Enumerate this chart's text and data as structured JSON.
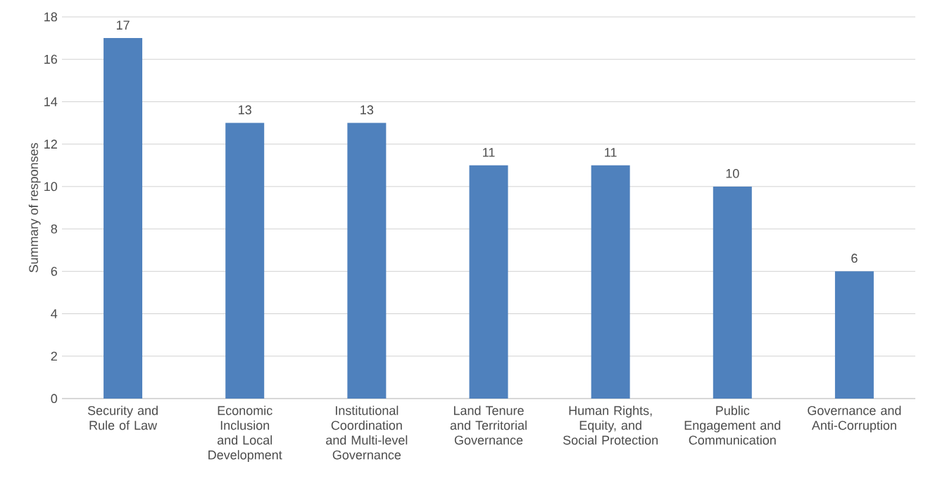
{
  "chart_data": {
    "type": "bar",
    "ylabel": "Summary of responses",
    "categories": [
      "Security and Rule of Law",
      "Economic Inclusion and Local Development",
      "Institutional Coordination and Multi-level Governance",
      "Land Tenure and Territorial Governance",
      "Human Rights, Equity, and Social Protection",
      "Public Engagement and Communication",
      "Governance and Anti-Corruption"
    ],
    "values": [
      17,
      13,
      13,
      11,
      11,
      10,
      6
    ],
    "color": "#4f81bd",
    "ylim": [
      0,
      18
    ],
    "yticks": [
      0,
      2,
      4,
      6,
      8,
      10,
      12,
      14,
      16,
      18
    ],
    "grid": "y",
    "data_labels": true
  }
}
